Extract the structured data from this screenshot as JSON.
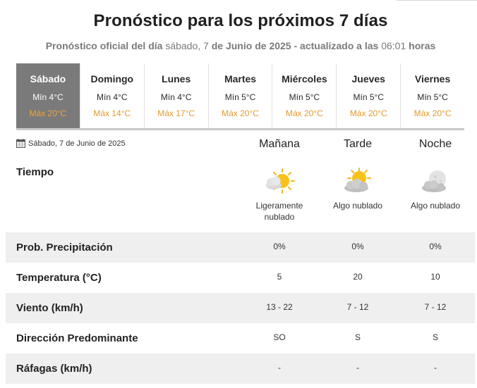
{
  "header": {
    "title": "Pronóstico para los próximos 7 días",
    "subtitle_prefix": "Pronóstico oficial del día",
    "weekday": "sábado",
    "day_num": "7",
    "de1": "de",
    "month": "Junio",
    "de2": "de",
    "year": "2025",
    "updated_text": "- actualizado a las",
    "time": "06:01",
    "hours_word": "horas"
  },
  "days": [
    {
      "name": "Sábado",
      "min": "Mín 4°C",
      "max": "Máx 20°C",
      "active": true
    },
    {
      "name": "Domingo",
      "min": "Mín 4°C",
      "max": "Máx 14°C"
    },
    {
      "name": "Lunes",
      "min": "Mín 4°C",
      "max": "Máx 17°C"
    },
    {
      "name": "Martes",
      "min": "Mín 5°C",
      "max": "Máx 20°C"
    },
    {
      "name": "Miércoles",
      "min": "Mín 5°C",
      "max": "Máx 20°C"
    },
    {
      "name": "Jueves",
      "min": "Mín 5°C",
      "max": "Máx 20°C"
    },
    {
      "name": "Viernes",
      "min": "Mín 5°C",
      "max": "Máx 20°C"
    }
  ],
  "detail": {
    "date": "Sábado, 7 de Junio de 2025",
    "calendar_icon": "calendar-icon",
    "periods": [
      "Mañana",
      "Tarde",
      "Noche"
    ],
    "tiempo_label": "Tiempo",
    "weather": [
      {
        "icon": "sun-cloud-icon",
        "line1": "Ligeramente",
        "line2": "nublado"
      },
      {
        "icon": "sun-cloud-icon",
        "line1": "Algo nublado",
        "line2": ""
      },
      {
        "icon": "moon-cloud-icon",
        "line1": "Algo nublado",
        "line2": ""
      }
    ],
    "rows": [
      {
        "label": "Prob. Precipitación",
        "values": [
          "0%",
          "0%",
          "0%"
        ]
      },
      {
        "label": "Temperatura (°C)",
        "values": [
          "5",
          "20",
          "10"
        ]
      },
      {
        "label": "Viento (km/h)",
        "values": [
          "13 - 22",
          "7 - 12",
          "7 - 12"
        ]
      },
      {
        "label": "Dirección Predominante",
        "values": [
          "SO",
          "S",
          "S"
        ]
      },
      {
        "label": "Ráfagas (km/h)",
        "values": [
          "-",
          "-",
          "-"
        ]
      }
    ]
  },
  "colors": {
    "active_day_bg": "#7a7a7a",
    "max_temp": "#e39b2f",
    "row_shade": "#efefef"
  }
}
